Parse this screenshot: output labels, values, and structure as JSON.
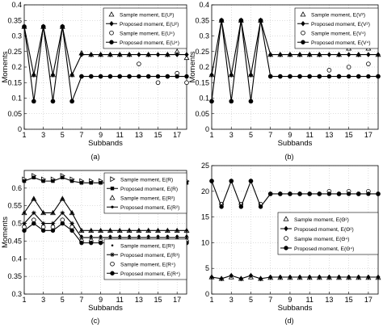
{
  "chart_data": [
    {
      "type": "line",
      "panel_label": "(a)",
      "xlabel": "Subbands",
      "ylabel": "Moments",
      "xlim": [
        1,
        18
      ],
      "ylim": [
        0,
        0.4
      ],
      "xticks": [
        1,
        3,
        5,
        7,
        9,
        11,
        13,
        15,
        17
      ],
      "yticks": [
        0,
        0.05,
        0.1,
        0.15,
        0.2,
        0.25,
        0.3,
        0.35,
        0.4
      ],
      "ytick_labels": [
        "0",
        "0.05",
        "0.1",
        "0.15",
        "0.2",
        "0.25",
        "0.3",
        "0.35",
        "0.4"
      ],
      "grid": true,
      "legend_position": "top-right",
      "x": [
        1,
        2,
        3,
        4,
        5,
        6,
        7,
        8,
        9,
        10,
        11,
        12,
        13,
        14,
        15,
        16,
        17,
        18
      ],
      "series": [
        {
          "name": "Sample moment, E(U²)",
          "marker": "triangle",
          "line": false,
          "values": [
            0.33,
            0.175,
            0.33,
            0.175,
            0.33,
            0.175,
            0.245,
            0.24,
            0.24,
            0.24,
            0.24,
            0.24,
            0.27,
            0.24,
            0.27,
            0.24,
            0.25,
            0.23
          ]
        },
        {
          "name": "Proposed moment, E(U²)",
          "marker": "diamond",
          "line": true,
          "values": [
            0.33,
            0.175,
            0.33,
            0.175,
            0.33,
            0.175,
            0.24,
            0.24,
            0.24,
            0.24,
            0.24,
            0.24,
            0.24,
            0.24,
            0.24,
            0.24,
            0.24,
            0.24
          ]
        },
        {
          "name": "Sample moment, E(U⁴)",
          "marker": "circle-open",
          "line": false,
          "values": [
            0.33,
            0.09,
            0.33,
            0.09,
            0.33,
            0.09,
            0.17,
            0.17,
            0.17,
            0.17,
            0.17,
            0.17,
            0.21,
            0.17,
            0.15,
            0.17,
            0.18,
            0.15
          ]
        },
        {
          "name": "Proposed moment, E(U⁴)",
          "marker": "circle-filled",
          "line": true,
          "values": [
            0.33,
            0.09,
            0.33,
            0.09,
            0.33,
            0.09,
            0.17,
            0.17,
            0.17,
            0.17,
            0.17,
            0.17,
            0.17,
            0.17,
            0.17,
            0.17,
            0.17,
            0.17
          ]
        }
      ]
    },
    {
      "type": "line",
      "panel_label": "(b)",
      "xlabel": "Subbands",
      "ylabel": "Moments",
      "xlim": [
        1,
        18
      ],
      "ylim": [
        0,
        0.4
      ],
      "xticks": [
        1,
        3,
        5,
        7,
        9,
        11,
        13,
        15,
        17
      ],
      "yticks": [
        0,
        0.05,
        0.1,
        0.15,
        0.2,
        0.25,
        0.3,
        0.35,
        0.4
      ],
      "ytick_labels": [
        "0",
        "0.05",
        "0.1",
        "0.15",
        "0.2",
        "0.25",
        "0.3",
        "0.35",
        "0.4"
      ],
      "grid": true,
      "legend_position": "top-right",
      "x": [
        1,
        2,
        3,
        4,
        5,
        6,
        7,
        8,
        9,
        10,
        11,
        12,
        13,
        14,
        15,
        16,
        17,
        18
      ],
      "series": [
        {
          "name": "Sample moment, E(V²)",
          "marker": "triangle",
          "line": false,
          "values": [
            0.175,
            0.35,
            0.175,
            0.35,
            0.175,
            0.35,
            0.24,
            0.24,
            0.24,
            0.24,
            0.24,
            0.24,
            0.27,
            0.24,
            0.26,
            0.24,
            0.26,
            0.24
          ]
        },
        {
          "name": "Proposed moment, E(V²)",
          "marker": "diamond",
          "line": true,
          "values": [
            0.175,
            0.35,
            0.175,
            0.35,
            0.175,
            0.35,
            0.24,
            0.24,
            0.24,
            0.24,
            0.24,
            0.24,
            0.24,
            0.24,
            0.24,
            0.24,
            0.24,
            0.24
          ]
        },
        {
          "name": "Sample moment, E(V⁴)",
          "marker": "circle-open",
          "line": false,
          "values": [
            0.09,
            0.35,
            0.09,
            0.35,
            0.09,
            0.35,
            0.17,
            0.17,
            0.17,
            0.17,
            0.17,
            0.17,
            0.19,
            0.17,
            0.2,
            0.17,
            0.21,
            0.17
          ]
        },
        {
          "name": "Proposed moment, E(V⁴)",
          "marker": "circle-filled",
          "line": true,
          "values": [
            0.09,
            0.35,
            0.09,
            0.35,
            0.09,
            0.35,
            0.17,
            0.17,
            0.17,
            0.17,
            0.17,
            0.17,
            0.17,
            0.17,
            0.17,
            0.17,
            0.17,
            0.17
          ]
        }
      ]
    },
    {
      "type": "line",
      "panel_label": "(c)",
      "xlabel": "Subbands",
      "ylabel": "Moments",
      "xlim": [
        1,
        18
      ],
      "ylim": [
        0.3,
        0.65
      ],
      "xticks": [
        1,
        3,
        5,
        7,
        9,
        11,
        13,
        15,
        17
      ],
      "yticks": [
        0.3,
        0.35,
        0.4,
        0.45,
        0.5,
        0.55,
        0.6
      ],
      "ytick_labels": [
        "0.3",
        "0.35",
        "0.4",
        "0.45",
        "0.5",
        "0.55",
        "0.6"
      ],
      "grid": true,
      "legend_position": "top-right / bottom-right",
      "x": [
        1,
        2,
        3,
        4,
        5,
        6,
        7,
        8,
        9,
        10,
        11,
        12,
        13,
        14,
        15,
        16,
        17,
        18
      ],
      "series": [
        {
          "name": "Sample moment, E(R)",
          "marker": "triangle-right",
          "line": false,
          "values": [
            0.625,
            0.635,
            0.625,
            0.625,
            0.635,
            0.625,
            0.62,
            0.62,
            0.62,
            0.62,
            0.62,
            0.62,
            0.62,
            0.62,
            0.62,
            0.62,
            0.62,
            0.62
          ]
        },
        {
          "name": "Proposed moment, E(R)",
          "marker": "square",
          "line": true,
          "values": [
            0.62,
            0.63,
            0.62,
            0.62,
            0.63,
            0.62,
            0.615,
            0.615,
            0.615,
            0.615,
            0.615,
            0.615,
            0.615,
            0.615,
            0.615,
            0.615,
            0.615,
            0.615
          ]
        },
        {
          "name": "Sample moment, E(R²)",
          "marker": "triangle",
          "line": false,
          "values": [
            0.53,
            0.57,
            0.53,
            0.53,
            0.57,
            0.53,
            0.48,
            0.48,
            0.48,
            0.48,
            0.48,
            0.48,
            0.48,
            0.48,
            0.48,
            0.48,
            0.48,
            0.48
          ]
        },
        {
          "name": "Proposed moment, E(R²)",
          "marker": "dot",
          "line": true,
          "values": [
            0.53,
            0.57,
            0.53,
            0.53,
            0.57,
            0.53,
            0.48,
            0.48,
            0.48,
            0.48,
            0.48,
            0.48,
            0.48,
            0.48,
            0.48,
            0.48,
            0.48,
            0.48
          ]
        },
        {
          "name": "Sample moment, E(R³)",
          "marker": "dot-small",
          "line": false,
          "values": [
            0.5,
            0.53,
            0.5,
            0.5,
            0.53,
            0.5,
            0.465,
            0.465,
            0.465,
            0.465,
            0.465,
            0.465,
            0.465,
            0.465,
            0.465,
            0.465,
            0.465,
            0.465
          ]
        },
        {
          "name": "Proposed moment, E(R³)",
          "marker": "star",
          "line": true,
          "values": [
            0.5,
            0.53,
            0.5,
            0.5,
            0.53,
            0.5,
            0.46,
            0.46,
            0.46,
            0.46,
            0.46,
            0.46,
            0.46,
            0.46,
            0.46,
            0.46,
            0.46,
            0.46
          ]
        },
        {
          "name": "Sample moment, E(R⁴)",
          "marker": "circle-open",
          "line": false,
          "values": [
            0.49,
            0.51,
            0.49,
            0.49,
            0.51,
            0.49,
            0.45,
            0.45,
            0.45,
            0.45,
            0.45,
            0.45,
            0.45,
            0.45,
            0.45,
            0.45,
            0.45,
            0.45
          ]
        },
        {
          "name": "Proposed moment, E(R⁴)",
          "marker": "circle-filled",
          "line": true,
          "values": [
            0.48,
            0.5,
            0.48,
            0.48,
            0.5,
            0.48,
            0.445,
            0.445,
            0.445,
            0.445,
            0.445,
            0.445,
            0.445,
            0.445,
            0.445,
            0.445,
            0.445,
            0.445
          ]
        }
      ]
    },
    {
      "type": "line",
      "panel_label": "(d)",
      "xlabel": "Subbands",
      "ylabel": "",
      "xlim": [
        1,
        18
      ],
      "ylim": [
        0,
        25
      ],
      "xticks": [
        1,
        3,
        5,
        7,
        9,
        11,
        13,
        15,
        17
      ],
      "yticks": [
        0,
        5,
        10,
        15,
        20,
        25
      ],
      "ytick_labels": [
        "0",
        "5",
        "10",
        "15",
        "20",
        "25"
      ],
      "grid": true,
      "legend_position": "center-right",
      "x": [
        1,
        2,
        3,
        4,
        5,
        6,
        7,
        8,
        9,
        10,
        11,
        12,
        13,
        14,
        15,
        16,
        17,
        18
      ],
      "series": [
        {
          "name": "Sample moment, E(Θ²)",
          "marker": "triangle",
          "line": false,
          "values": [
            3.3,
            3.0,
            3.3,
            3.0,
            3.3,
            3.0,
            3.2,
            3.2,
            3.2,
            3.2,
            3.2,
            3.2,
            3.2,
            3.2,
            3.2,
            3.2,
            3.2,
            3.2
          ]
        },
        {
          "name": "Proposed moment, E(Θ²)",
          "marker": "diamond",
          "line": true,
          "values": [
            3.3,
            3.0,
            3.6,
            3.0,
            3.6,
            3.0,
            3.3,
            3.3,
            3.3,
            3.3,
            3.3,
            3.3,
            3.3,
            3.3,
            3.3,
            3.3,
            3.3,
            3.3
          ]
        },
        {
          "name": "Sample moment, E(Θ⁴)",
          "marker": "circle-open",
          "line": false,
          "values": [
            22,
            17.5,
            22,
            17.5,
            22,
            17.5,
            19.5,
            19.5,
            19.5,
            19.5,
            19.5,
            19.5,
            20,
            19.5,
            20,
            19.5,
            20,
            19.5
          ]
        },
        {
          "name": "Proposed moment, E(Θ⁴)",
          "marker": "circle-filled",
          "line": true,
          "values": [
            22,
            17.0,
            22,
            17.0,
            22,
            17.0,
            19.5,
            19.5,
            19.5,
            19.5,
            19.5,
            19.5,
            19.5,
            19.5,
            19.5,
            19.5,
            19.5,
            19.5
          ]
        }
      ]
    }
  ]
}
